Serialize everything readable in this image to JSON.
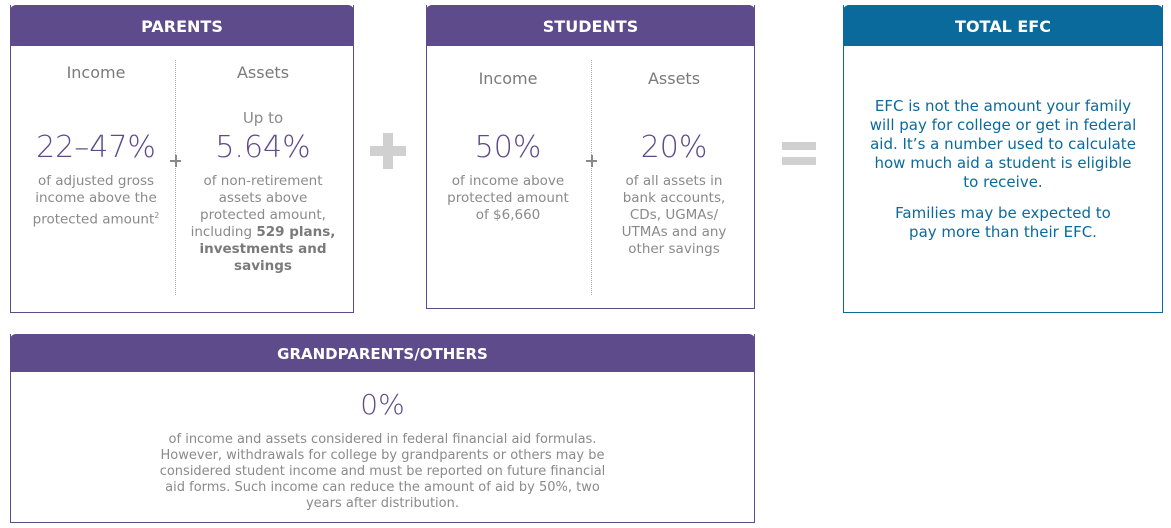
{
  "parents": {
    "title": "PARENTS",
    "income": {
      "heading": "Income",
      "value": "22–47%",
      "description": "of adjusted gross income above the protected amount",
      "footnote": "2"
    },
    "assets": {
      "heading": "Assets",
      "prefix": "Up to",
      "value": "5.64%",
      "description": "of non-retirement assets above protected amount, including",
      "description_bold": "529 plans, investments and savings"
    }
  },
  "students": {
    "title": "STUDENTS",
    "income": {
      "heading": "Income",
      "value": "50%",
      "description": "of income above protected amount of $6,660"
    },
    "assets": {
      "heading": "Assets",
      "value": "20%",
      "description": "of all assets in bank accounts, CDs, UGMAs/ UTMAs and any other savings"
    }
  },
  "total": {
    "title": "TOTAL EFC",
    "paragraphs": [
      "EFC is not the amount your family will pay for college or get in federal aid. It’s a number used to calculate how much aid a student is eligible to receive.",
      "Families may be expected to pay more than their EFC."
    ]
  },
  "grandparents": {
    "title": "GRANDPARENTS/OTHERS",
    "value": "0%",
    "description": "of income and assets considered in federal financial aid formulas. However, withdrawals for college by grandparents or others may be considered student income and must be reported on future financial aid forms. Such income can reduce the amount of aid by 50%, two years after distribution."
  }
}
